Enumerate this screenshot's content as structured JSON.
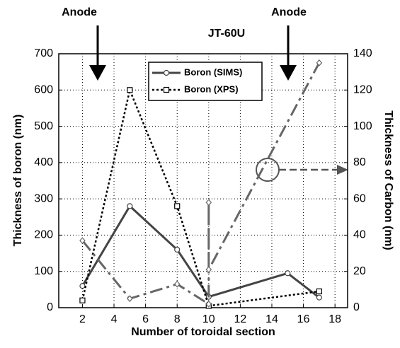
{
  "chart_data": {
    "type": "line",
    "title": "JT-60U",
    "xlabel": "Number of toroidal section",
    "ylabel": "Thickness of boron (nm)",
    "y2label": "Thickness of Carbon (nm)",
    "annotations": [
      "Anode",
      "Anode"
    ],
    "xlim": [
      0.5,
      18.8
    ],
    "xticks": [
      2,
      4,
      6,
      8,
      10,
      12,
      14,
      16,
      18
    ],
    "ylim": [
      0,
      700
    ],
    "yticks": [
      0,
      100,
      200,
      300,
      400,
      500,
      600,
      700
    ],
    "y2lim": [
      0,
      140
    ],
    "y2ticks": [
      0,
      20,
      40,
      60,
      80,
      100,
      120,
      140
    ],
    "grid": true,
    "series": [
      {
        "name": "Boron (SIMS)",
        "color": "#444444",
        "dash": "solid",
        "marker": "circle",
        "x": [
          2,
          5,
          8,
          10,
          15,
          17
        ],
        "values": [
          60,
          280,
          160,
          30,
          95,
          28
        ]
      },
      {
        "name": "Boron (XPS)",
        "color": "#000000",
        "dash": "dotted",
        "marker": "square",
        "x": [
          2,
          5,
          8,
          10,
          17
        ],
        "values": [
          20,
          600,
          280,
          5,
          45
        ]
      },
      {
        "color": "#666666",
        "dash": "dashed",
        "marker": "diamond",
        "axis": "y2",
        "x": [
          2,
          5,
          8,
          10,
          10,
          10,
          17
        ],
        "values": [
          37,
          5,
          13,
          2,
          58,
          21,
          135
        ]
      }
    ]
  }
}
